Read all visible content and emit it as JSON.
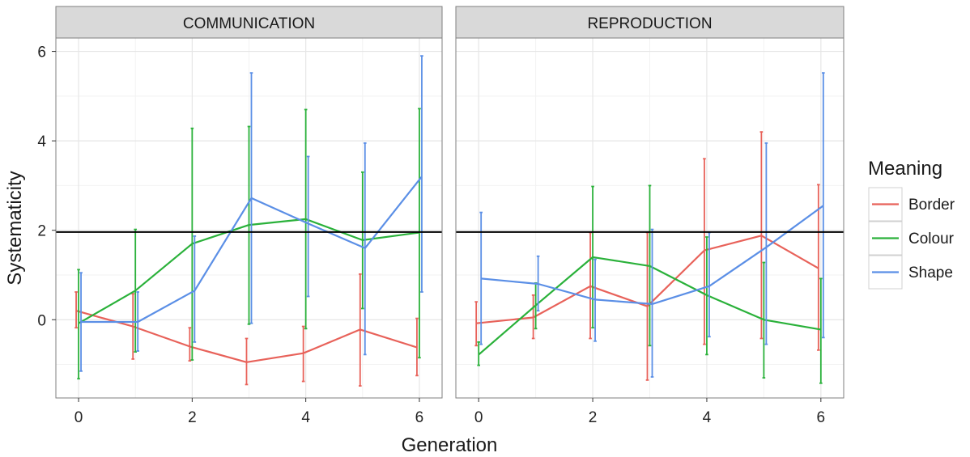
{
  "chart_data": {
    "type": "line",
    "xlabel": "Generation",
    "ylabel": "Systematicity",
    "xlim": [
      -0.4,
      6.4
    ],
    "ylim": [
      -1.75,
      6.3
    ],
    "x_ticks": [
      0,
      2,
      4,
      6
    ],
    "y_ticks": [
      0,
      2,
      4,
      6
    ],
    "reference_line": 1.96,
    "grid": true,
    "legend": {
      "title": "Meaning",
      "placement": "right",
      "entries": [
        "Border",
        "Colour",
        "Shape"
      ]
    },
    "colors": {
      "Border": "#e8625a",
      "Colour": "#2ab13a",
      "Shape": "#5b8fe6"
    },
    "panels": [
      {
        "title": "COMMUNICATION",
        "series": [
          {
            "name": "Border",
            "x": [
              0,
              1,
              2,
              3,
              4,
              5,
              6
            ],
            "y": [
              0.2,
              -0.15,
              -0.6,
              -0.95,
              -0.75,
              -0.22,
              -0.62
            ],
            "ymin": [
              -0.18,
              -0.88,
              -0.92,
              -1.45,
              -1.38,
              -1.48,
              -1.25
            ],
            "ymax": [
              0.62,
              0.58,
              -0.18,
              -0.42,
              -0.15,
              1.02,
              0.03
            ]
          },
          {
            "name": "Colour",
            "x": [
              0,
              1,
              2,
              3,
              4,
              5,
              6
            ],
            "y": [
              -0.08,
              0.65,
              1.7,
              2.12,
              2.25,
              1.78,
              1.95
            ],
            "ymin": [
              -1.32,
              -0.72,
              -0.9,
              -0.1,
              -0.2,
              0.25,
              -0.85
            ],
            "ymax": [
              1.12,
              2.02,
              4.28,
              4.32,
              4.7,
              3.3,
              4.72
            ]
          },
          {
            "name": "Shape",
            "x": [
              0,
              1,
              2,
              3,
              4,
              5,
              6
            ],
            "y": [
              -0.05,
              -0.05,
              0.65,
              2.72,
              2.15,
              1.6,
              3.2
            ],
            "ymin": [
              -1.15,
              -0.7,
              -0.5,
              -0.08,
              0.52,
              -0.78,
              0.62
            ],
            "ymax": [
              1.05,
              0.62,
              1.87,
              5.52,
              3.65,
              3.95,
              5.9
            ]
          }
        ]
      },
      {
        "title": "REPRODUCTION",
        "series": [
          {
            "name": "Border",
            "x": [
              0,
              1,
              2,
              3,
              4,
              5,
              6
            ],
            "y": [
              -0.08,
              0.05,
              0.75,
              0.3,
              1.55,
              1.88,
              1.15
            ],
            "ymin": [
              -0.58,
              -0.42,
              -0.42,
              -1.35,
              -0.55,
              -0.42,
              -0.68
            ],
            "ymax": [
              0.4,
              0.55,
              1.95,
              1.95,
              3.6,
              4.2,
              3.02
            ]
          },
          {
            "name": "Colour",
            "x": [
              0,
              1,
              2,
              3,
              4,
              5,
              6
            ],
            "y": [
              -0.78,
              0.32,
              1.4,
              1.2,
              0.55,
              0.0,
              -0.22
            ],
            "ymin": [
              -1.02,
              -0.2,
              -0.18,
              -0.58,
              -0.78,
              -1.3,
              -1.42
            ],
            "ymax": [
              -0.5,
              0.82,
              2.98,
              3.0,
              1.85,
              1.28,
              0.92
            ]
          },
          {
            "name": "Shape",
            "x": [
              0,
              1,
              2,
              3,
              4,
              5,
              6
            ],
            "y": [
              0.92,
              0.8,
              0.45,
              0.35,
              0.75,
              1.62,
              2.55
            ],
            "ymin": [
              -0.55,
              0.2,
              -0.48,
              -1.28,
              -0.38,
              -0.55,
              -0.4
            ],
            "ymax": [
              2.4,
              1.42,
              1.35,
              2.02,
              1.95,
              3.95,
              5.52
            ]
          }
        ]
      }
    ]
  }
}
